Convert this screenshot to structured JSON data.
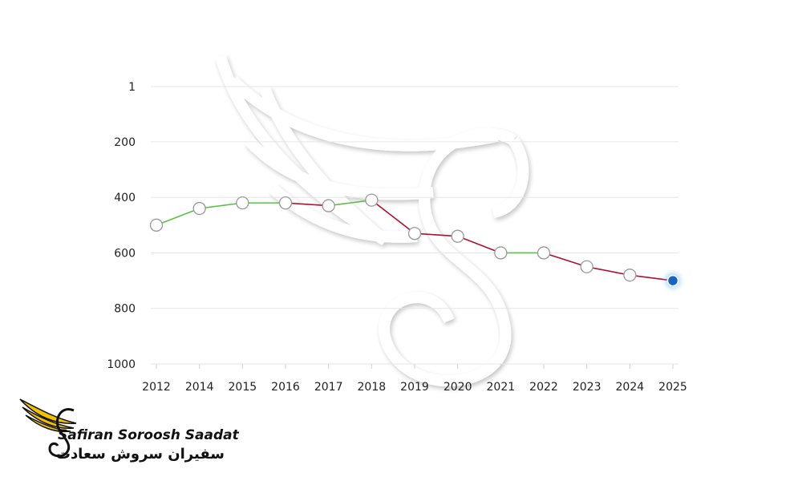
{
  "chart_data": {
    "type": "line",
    "categories": [
      "2012",
      "2014",
      "2015",
      "2016",
      "2017",
      "2018",
      "2019",
      "2020",
      "2021",
      "2022",
      "2023",
      "2024",
      "2025"
    ],
    "series": [
      {
        "values": [
          500,
          440,
          420,
          420,
          430,
          410,
          530,
          540,
          600,
          600,
          650,
          680,
          700
        ]
      }
    ],
    "y_axis": {
      "inverted": true,
      "range": [
        1,
        1000
      ],
      "ticks": [
        1,
        200,
        400,
        600,
        800,
        1000
      ]
    },
    "segment_colors": {
      "rise": "#5cbf4a",
      "fall": "#b0102b"
    },
    "point_color": "#ffffff",
    "point_stroke": "#999999",
    "highlight_point_color": "#1565c0",
    "grid": true,
    "legend": "none"
  },
  "brand": {
    "name_en": "Safiran Soroosh Saadat",
    "name_fa": "سفیران سروش سعادت",
    "logo_color": "#f2c200"
  }
}
